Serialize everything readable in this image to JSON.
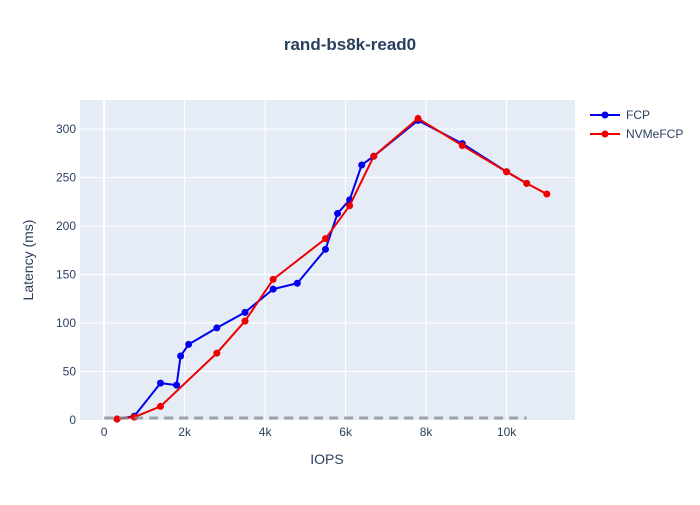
{
  "chart_data": {
    "type": "line",
    "title": "rand-bs8k-read0",
    "xlabel": "IOPS",
    "ylabel": "Latency (ms)",
    "xlim": [
      -600,
      11700
    ],
    "ylim": [
      0,
      330
    ],
    "x_ticks": [
      0,
      2000,
      4000,
      6000,
      8000,
      10000
    ],
    "x_tick_labels": [
      "0",
      "2k",
      "4k",
      "6k",
      "8k",
      "10k"
    ],
    "y_ticks": [
      0,
      50,
      100,
      150,
      200,
      250,
      300
    ],
    "y_tick_labels": [
      "0",
      "50",
      "100",
      "150",
      "200",
      "250",
      "300"
    ],
    "grid": true,
    "legend_position": "top-right",
    "series": [
      {
        "name": "FCP",
        "color": "#0000ee",
        "x": [
          320,
          750,
          1400,
          1800,
          1900,
          2100,
          2800,
          3500,
          4200,
          4800,
          5500,
          5800,
          6100,
          6400,
          6700,
          7800,
          8900,
          10000,
          10500
        ],
        "y": [
          1,
          4,
          38,
          36,
          66,
          78,
          95,
          111,
          135,
          141,
          176,
          213,
          227,
          263,
          272,
          309,
          285,
          256,
          244
        ]
      },
      {
        "name": "NVMeFCP",
        "color": "#ee0000",
        "x": [
          320,
          750,
          1400,
          2800,
          3500,
          4200,
          5500,
          6100,
          6700,
          7800,
          8900,
          10000,
          10500,
          11000
        ],
        "y": [
          1,
          3,
          14,
          69,
          102,
          145,
          187,
          221,
          272,
          311,
          283,
          256,
          244,
          233
        ]
      },
      {
        "color": "#888888",
        "dash": "dashed",
        "x": [
          0,
          10500
        ],
        "y": [
          2,
          2
        ]
      }
    ]
  }
}
